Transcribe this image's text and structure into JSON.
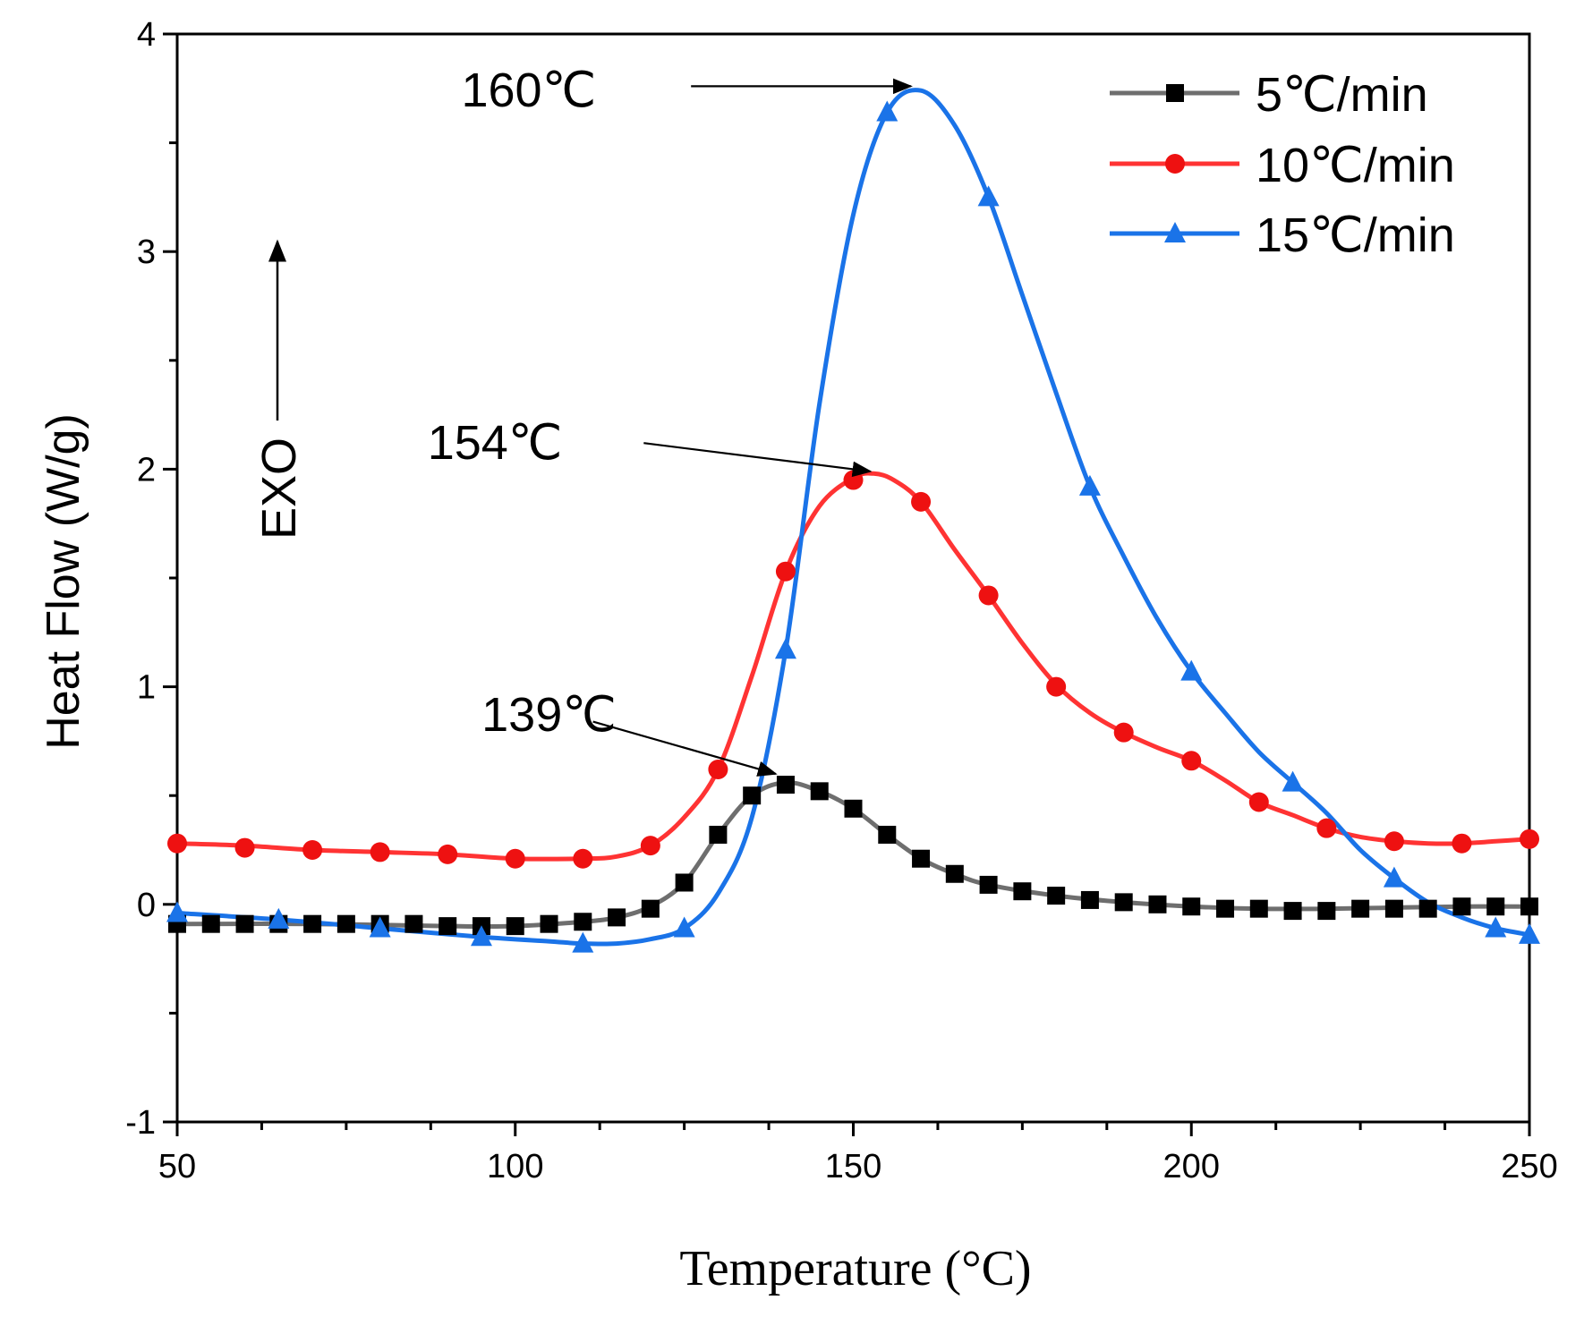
{
  "chart_data": {
    "type": "line",
    "xlabel": "Temperature (°C)",
    "ylabel": "Heat Flow (W/g)",
    "xlim": [
      50,
      250
    ],
    "ylim": [
      -1,
      4
    ],
    "xticks": [
      50,
      100,
      150,
      200,
      250
    ],
    "yticks": [
      -1,
      0,
      1,
      2,
      3,
      4
    ],
    "grid": false,
    "legend_position": "top-right",
    "exo_label": "EXO",
    "series": [
      {
        "name": "5℃/min",
        "color": "#6e6e6e",
        "marker_color": "#000000",
        "marker": "square",
        "curve": [
          [
            50,
            -0.09
          ],
          [
            70,
            -0.09
          ],
          [
            90,
            -0.1
          ],
          [
            100,
            -0.1
          ],
          [
            110,
            -0.08
          ],
          [
            115,
            -0.06
          ],
          [
            120,
            -0.01
          ],
          [
            125,
            0.1
          ],
          [
            130,
            0.32
          ],
          [
            135,
            0.5
          ],
          [
            140,
            0.56
          ],
          [
            145,
            0.52
          ],
          [
            150,
            0.44
          ],
          [
            155,
            0.32
          ],
          [
            160,
            0.21
          ],
          [
            165,
            0.14
          ],
          [
            170,
            0.09
          ],
          [
            180,
            0.04
          ],
          [
            190,
            0.01
          ],
          [
            200,
            -0.01
          ],
          [
            210,
            -0.02
          ],
          [
            220,
            -0.02
          ],
          [
            230,
            -0.015
          ],
          [
            240,
            -0.01
          ],
          [
            250,
            -0.01
          ]
        ],
        "markers": [
          [
            50,
            -0.09
          ],
          [
            55,
            -0.09
          ],
          [
            60,
            -0.09
          ],
          [
            65,
            -0.09
          ],
          [
            70,
            -0.09
          ],
          [
            75,
            -0.09
          ],
          [
            80,
            -0.09
          ],
          [
            85,
            -0.09
          ],
          [
            90,
            -0.1
          ],
          [
            95,
            -0.1
          ],
          [
            100,
            -0.1
          ],
          [
            105,
            -0.09
          ],
          [
            110,
            -0.08
          ],
          [
            115,
            -0.06
          ],
          [
            120,
            -0.02
          ],
          [
            125,
            0.1
          ],
          [
            130,
            0.32
          ],
          [
            135,
            0.5
          ],
          [
            140,
            0.55
          ],
          [
            145,
            0.52
          ],
          [
            150,
            0.44
          ],
          [
            155,
            0.32
          ],
          [
            160,
            0.21
          ],
          [
            165,
            0.14
          ],
          [
            170,
            0.09
          ],
          [
            175,
            0.06
          ],
          [
            180,
            0.04
          ],
          [
            185,
            0.02
          ],
          [
            190,
            0.01
          ],
          [
            195,
            0.0
          ],
          [
            200,
            -0.01
          ],
          [
            205,
            -0.02
          ],
          [
            210,
            -0.02
          ],
          [
            215,
            -0.03
          ],
          [
            220,
            -0.03
          ],
          [
            225,
            -0.02
          ],
          [
            230,
            -0.02
          ],
          [
            235,
            -0.02
          ],
          [
            240,
            -0.01
          ],
          [
            245,
            -0.01
          ],
          [
            250,
            -0.01
          ]
        ]
      },
      {
        "name": "10℃/min",
        "color": "#ff3333",
        "marker_color": "#ee1111",
        "marker": "circle",
        "curve": [
          [
            50,
            0.28
          ],
          [
            60,
            0.27
          ],
          [
            70,
            0.25
          ],
          [
            80,
            0.24
          ],
          [
            90,
            0.23
          ],
          [
            100,
            0.21
          ],
          [
            110,
            0.21
          ],
          [
            115,
            0.22
          ],
          [
            120,
            0.27
          ],
          [
            125,
            0.4
          ],
          [
            130,
            0.62
          ],
          [
            135,
            1.05
          ],
          [
            140,
            1.53
          ],
          [
            145,
            1.83
          ],
          [
            150,
            1.96
          ],
          [
            153,
            1.98
          ],
          [
            156,
            1.95
          ],
          [
            160,
            1.85
          ],
          [
            165,
            1.63
          ],
          [
            170,
            1.42
          ],
          [
            175,
            1.2
          ],
          [
            180,
            1.01
          ],
          [
            185,
            0.88
          ],
          [
            190,
            0.79
          ],
          [
            195,
            0.72
          ],
          [
            200,
            0.66
          ],
          [
            205,
            0.57
          ],
          [
            210,
            0.47
          ],
          [
            215,
            0.41
          ],
          [
            220,
            0.35
          ],
          [
            225,
            0.31
          ],
          [
            230,
            0.29
          ],
          [
            235,
            0.28
          ],
          [
            240,
            0.28
          ],
          [
            245,
            0.29
          ],
          [
            250,
            0.3
          ]
        ],
        "markers": [
          [
            50,
            0.28
          ],
          [
            60,
            0.26
          ],
          [
            70,
            0.25
          ],
          [
            80,
            0.24
          ],
          [
            90,
            0.23
          ],
          [
            100,
            0.21
          ],
          [
            110,
            0.21
          ],
          [
            120,
            0.27
          ],
          [
            130,
            0.62
          ],
          [
            140,
            1.53
          ],
          [
            150,
            1.95
          ],
          [
            160,
            1.85
          ],
          [
            170,
            1.42
          ],
          [
            180,
            1.0
          ],
          [
            190,
            0.79
          ],
          [
            200,
            0.66
          ],
          [
            210,
            0.47
          ],
          [
            220,
            0.35
          ],
          [
            230,
            0.29
          ],
          [
            240,
            0.28
          ],
          [
            250,
            0.3
          ]
        ]
      },
      {
        "name": "15℃/min",
        "color": "#1a73e8",
        "marker_color": "#1a73e8",
        "marker": "triangle",
        "curve": [
          [
            50,
            -0.04
          ],
          [
            65,
            -0.07
          ],
          [
            80,
            -0.11
          ],
          [
            95,
            -0.15
          ],
          [
            105,
            -0.17
          ],
          [
            110,
            -0.18
          ],
          [
            115,
            -0.18
          ],
          [
            120,
            -0.16
          ],
          [
            125,
            -0.11
          ],
          [
            130,
            0.05
          ],
          [
            135,
            0.4
          ],
          [
            140,
            1.17
          ],
          [
            145,
            2.3
          ],
          [
            150,
            3.17
          ],
          [
            155,
            3.64
          ],
          [
            160,
            3.74
          ],
          [
            165,
            3.58
          ],
          [
            170,
            3.25
          ],
          [
            175,
            2.8
          ],
          [
            180,
            2.35
          ],
          [
            185,
            1.92
          ],
          [
            190,
            1.6
          ],
          [
            195,
            1.31
          ],
          [
            200,
            1.07
          ],
          [
            205,
            0.88
          ],
          [
            210,
            0.7
          ],
          [
            215,
            0.56
          ],
          [
            220,
            0.42
          ],
          [
            225,
            0.25
          ],
          [
            230,
            0.12
          ],
          [
            235,
            0.01
          ],
          [
            240,
            -0.06
          ],
          [
            245,
            -0.11
          ],
          [
            250,
            -0.14
          ]
        ],
        "markers": [
          [
            50,
            -0.04
          ],
          [
            65,
            -0.07
          ],
          [
            80,
            -0.11
          ],
          [
            95,
            -0.15
          ],
          [
            110,
            -0.18
          ],
          [
            125,
            -0.11
          ],
          [
            140,
            1.17
          ],
          [
            155,
            3.64
          ],
          [
            170,
            3.25
          ],
          [
            185,
            1.92
          ],
          [
            200,
            1.07
          ],
          [
            215,
            0.56
          ],
          [
            230,
            0.12
          ],
          [
            245,
            -0.11
          ],
          [
            250,
            -0.14
          ]
        ]
      }
    ],
    "annotations": [
      {
        "text": "139℃",
        "label_x": 105,
        "label_y": 0.88,
        "start_x": 111.5,
        "start_y": 0.84,
        "end_x": 138.5,
        "end_y": 0.6
      },
      {
        "text": "154℃",
        "label_x": 97,
        "label_y": 2.13,
        "start_x": 119,
        "start_y": 2.12,
        "end_x": 152.5,
        "end_y": 1.99
      },
      {
        "text": "160℃",
        "label_x": 102,
        "label_y": 3.75,
        "start_x": 126,
        "start_y": 3.76,
        "end_x": 158.5,
        "end_y": 3.76
      }
    ]
  }
}
